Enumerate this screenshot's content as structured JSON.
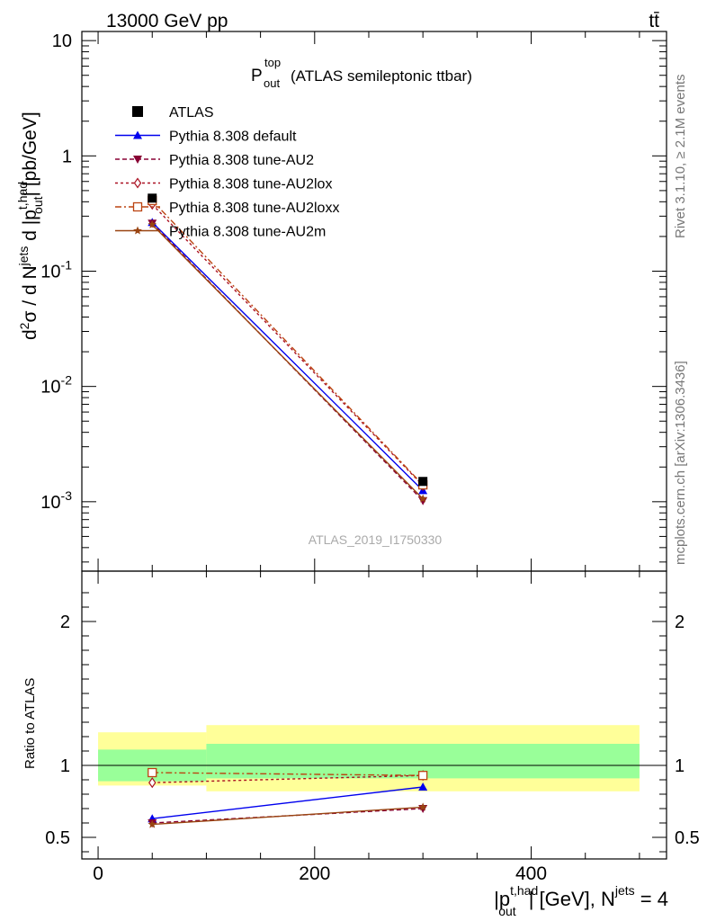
{
  "header": {
    "energy_label": "13000 GeV pp",
    "process_label": "tt̄"
  },
  "side_labels": {
    "rivet": "Rivet 3.1.10, ≥ 2.1M events",
    "mcplots": "mcplots.cern.ch [arXiv:1306.3436]"
  },
  "chart_data": {
    "type": "line",
    "title": {
      "main": "P",
      "sup": "top",
      "sub": "out",
      "rest": "(ATLAS semileptonic ttbar)"
    },
    "watermark": "ATLAS_2019_I1750330",
    "xlabel": "|p_out^t,had| [GeV], N^jets = 4",
    "xlabel_parts": {
      "a": "|p",
      "sup": "t,had",
      "sub": "out",
      "b": "| [GeV], N",
      "sup2": "jets",
      "c": " = 4"
    },
    "ylabel": "d²σ / d N^jets d |p_out^t,had| [pb/GeV]",
    "ylabel_parts": {
      "a": "d",
      "sup1": "2",
      "b": "σ / d N",
      "sup2": "jets",
      "c": " d |p",
      "sup3": "t,had",
      "sub3": "out",
      "d": "| [pb/GeV]"
    },
    "ratio_ylabel": "Ratio to ATLAS",
    "xlim": [
      -15,
      525
    ],
    "x_ticks": [
      0,
      200,
      400
    ],
    "main": {
      "scale": "log",
      "ylim": [
        0.00025,
        12
      ],
      "y_ticks": [
        0.001,
        0.01,
        0.1,
        1,
        10
      ],
      "y_tick_labels": [
        "10^-3",
        "10^-2",
        "10^-1",
        "1",
        "10"
      ]
    },
    "ratio": {
      "scale": "linear",
      "ylim": [
        0.35,
        2.35
      ],
      "y_ticks": [
        0.5,
        1,
        2
      ],
      "y_tick_labels": [
        "0.5",
        "1",
        "2"
      ]
    },
    "bins": [
      [
        0,
        100
      ],
      [
        100,
        500
      ]
    ],
    "x": [
      50,
      300
    ],
    "reference": {
      "name": "ATLAS",
      "values": [
        0.43,
        0.0015
      ],
      "band_inner": [
        [
          0.89,
          1.11
        ],
        [
          0.91,
          1.15
        ]
      ],
      "band_outer": [
        [
          0.86,
          1.23
        ],
        [
          0.82,
          1.28
        ]
      ]
    },
    "series": [
      {
        "name": "Pythia 8.308 default",
        "color": "#0000ee",
        "marker": "triangle-up",
        "dash": "",
        "values": [
          0.265,
          0.00125
        ],
        "ratio": [
          0.63,
          0.85
        ]
      },
      {
        "name": "Pythia 8.308 tune-AU2",
        "color": "#880033",
        "marker": "triangle-down",
        "dash": "5,3",
        "values": [
          0.26,
          0.00102
        ],
        "ratio": [
          0.6,
          0.7
        ]
      },
      {
        "name": "Pythia 8.308 tune-AU2lox",
        "color": "#aa1122",
        "marker": "diamond-open",
        "dash": "3,3",
        "values": [
          0.38,
          0.00138
        ],
        "ratio": [
          0.88,
          0.93
        ]
      },
      {
        "name": "Pythia 8.308 tune-AU2loxx",
        "color": "#bb4411",
        "marker": "square-open",
        "dash": "7,3,2,3",
        "values": [
          0.41,
          0.0014
        ],
        "ratio": [
          0.95,
          0.93
        ]
      },
      {
        "name": "Pythia 8.308 tune-AU2m",
        "color": "#994411",
        "marker": "star",
        "dash": "",
        "values": [
          0.253,
          0.00106
        ],
        "ratio": [
          0.59,
          0.71
        ]
      }
    ],
    "colors": {
      "band_inner": "#99ff99",
      "band_outer": "#ffff99"
    }
  }
}
